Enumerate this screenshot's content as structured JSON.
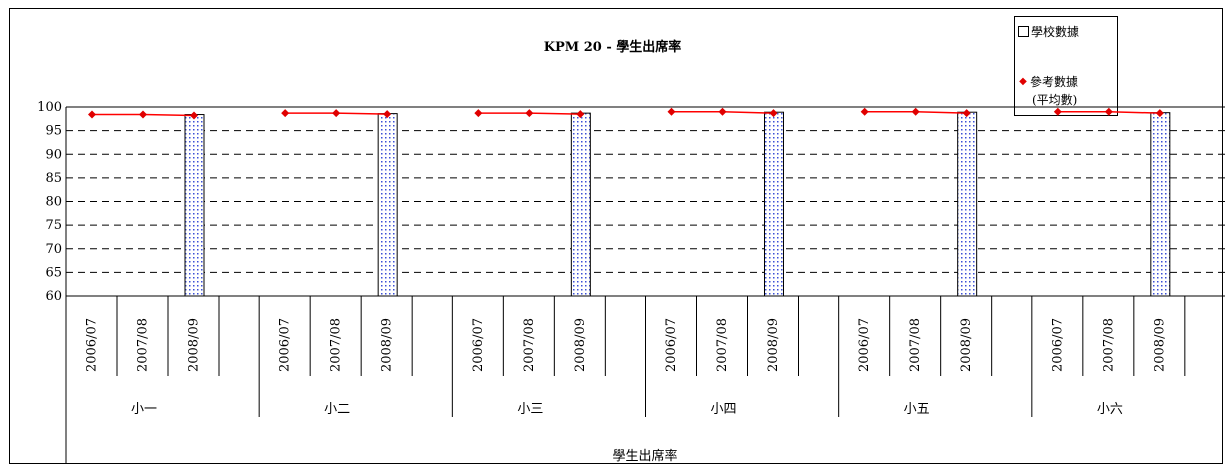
{
  "chart_data": {
    "type": "bar",
    "title": "KPM 20 - 學生出席率",
    "xlabel": "學生出席率",
    "ylabel": "",
    "ylim": [
      60,
      100
    ],
    "yticks": [
      60,
      65,
      70,
      75,
      80,
      85,
      90,
      95,
      100
    ],
    "grid": true,
    "legend_position": "top-right",
    "groups": [
      "小一",
      "小二",
      "小三",
      "小四",
      "小五",
      "小六"
    ],
    "years": [
      "2006/07",
      "2007/08",
      "2008/09"
    ],
    "series": [
      {
        "name": "學校數據",
        "kind": "bar",
        "values": [
          [
            null,
            null,
            98.4
          ],
          [
            null,
            null,
            98.6
          ],
          [
            null,
            null,
            98.7
          ],
          [
            null,
            null,
            98.9
          ],
          [
            null,
            null,
            98.9
          ],
          [
            null,
            null,
            98.8
          ]
        ]
      },
      {
        "name": "參考數據",
        "name_line2": "(平均數)",
        "kind": "line",
        "values": [
          [
            98.4,
            98.4,
            98.2
          ],
          [
            98.7,
            98.7,
            98.5
          ],
          [
            98.7,
            98.7,
            98.5
          ],
          [
            99.0,
            99.0,
            98.7
          ],
          [
            99.0,
            99.0,
            98.7
          ],
          [
            99.0,
            99.0,
            98.7
          ]
        ]
      }
    ],
    "colors": {
      "bar_dot": "#3b4fd6",
      "line": "#ff0000",
      "marker": "#e00000"
    }
  }
}
